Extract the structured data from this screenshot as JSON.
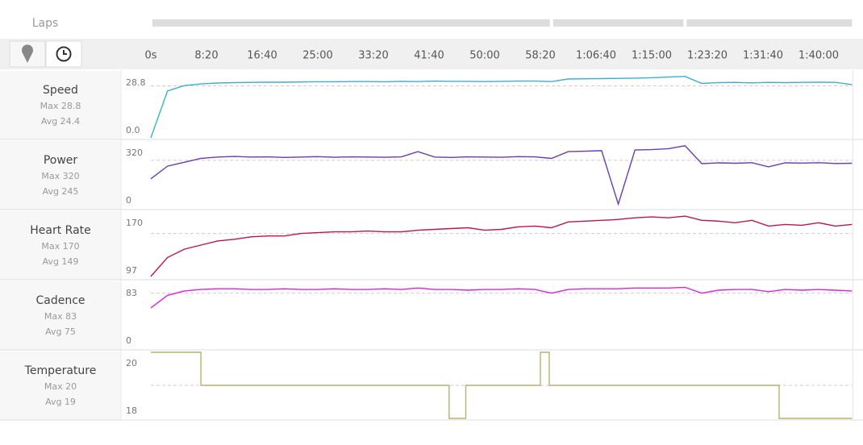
{
  "laps": {
    "label": "Laps",
    "splits": [
      3600,
      4800
    ]
  },
  "x_axis": {
    "xlim": [
      0,
      6300
    ],
    "xticks": [
      {
        "value": 0,
        "label": "0s"
      },
      {
        "value": 500,
        "label": "8:20"
      },
      {
        "value": 1000,
        "label": "16:40"
      },
      {
        "value": 1500,
        "label": "25:00"
      },
      {
        "value": 2000,
        "label": "33:20"
      },
      {
        "value": 2500,
        "label": "41:40"
      },
      {
        "value": 3000,
        "label": "50:00"
      },
      {
        "value": 3500,
        "label": "58:20"
      },
      {
        "value": 4000,
        "label": "1:06:40"
      },
      {
        "value": 4500,
        "label": "1:15:00"
      },
      {
        "value": 5000,
        "label": "1:23:20"
      },
      {
        "value": 5500,
        "label": "1:31:40"
      },
      {
        "value": 6000,
        "label": "1:40:00"
      }
    ]
  },
  "chart_data": [
    {
      "type": "line",
      "title": "Speed",
      "color": "#3ab0d0",
      "stats": {
        "max": {
          "value": 28.8,
          "label": "Max 28.8"
        },
        "avg": {
          "value": 24.4,
          "label": "Avg 24.4"
        }
      },
      "ylim": [
        0,
        31
      ],
      "yticks": [
        {
          "value": 0,
          "label": "0.0"
        },
        28.8
      ],
      "x": [
        0,
        150,
        300,
        450,
        600,
        750,
        900,
        1050,
        1200,
        1350,
        1500,
        1650,
        1800,
        1950,
        2100,
        2250,
        2400,
        2550,
        2700,
        2850,
        3000,
        3150,
        3300,
        3450,
        3600,
        3750,
        3900,
        4050,
        4200,
        4350,
        4500,
        4650,
        4800,
        4950,
        5100,
        5250,
        5400,
        5550,
        5700,
        5850,
        6000,
        6150,
        6300
      ],
      "values": [
        0,
        22,
        24.5,
        25.3,
        25.7,
        25.9,
        26,
        26.1,
        26.1,
        26.2,
        26.3,
        26.3,
        26.4,
        26.4,
        26.3,
        26.5,
        26.4,
        26.6,
        26.5,
        26.5,
        26.4,
        26.5,
        26.6,
        26.6,
        26.4,
        27.6,
        27.7,
        27.8,
        27.9,
        28,
        28.2,
        28.5,
        28.8,
        25.5,
        25.9,
        26,
        25.8,
        26,
        25.9,
        26,
        26.1,
        26,
        25
      ]
    },
    {
      "type": "line",
      "title": "Power",
      "color": "#6a3ab8",
      "stats": {
        "max": {
          "value": 320,
          "label": "Max 320"
        },
        "avg": {
          "value": 245,
          "label": "Avg 245"
        }
      },
      "ylim": [
        0,
        340
      ],
      "yticks": [
        0,
        320
      ],
      "x": [
        0,
        150,
        300,
        450,
        600,
        750,
        900,
        1050,
        1200,
        1350,
        1500,
        1650,
        1800,
        1950,
        2100,
        2250,
        2400,
        2550,
        2700,
        2850,
        3000,
        3150,
        3300,
        3450,
        3600,
        3750,
        3900,
        4050,
        4200,
        4350,
        4500,
        4650,
        4800,
        4950,
        5100,
        5250,
        5400,
        5550,
        5700,
        5850,
        6000,
        6150,
        6300
      ],
      "values": [
        150,
        215,
        235,
        255,
        262,
        265,
        262,
        263,
        260,
        262,
        264,
        261,
        263,
        262,
        261,
        263,
        290,
        262,
        260,
        263,
        262,
        261,
        264,
        263,
        255,
        290,
        292,
        295,
        20,
        298,
        300,
        305,
        320,
        228,
        232,
        230,
        233,
        212,
        232,
        231,
        233,
        229,
        230
      ]
    },
    {
      "type": "line",
      "title": "Heart Rate",
      "color": "#c0144a",
      "stats": {
        "max": {
          "value": 170,
          "label": "Max 170"
        },
        "avg": {
          "value": 149,
          "label": "Avg 149"
        }
      },
      "ylim": [
        95,
        175
      ],
      "yticks": [
        97,
        170
      ],
      "x": [
        0,
        150,
        300,
        450,
        600,
        750,
        900,
        1050,
        1200,
        1350,
        1500,
        1650,
        1800,
        1950,
        2100,
        2250,
        2400,
        2550,
        2700,
        2850,
        3000,
        3150,
        3300,
        3450,
        3600,
        3750,
        3900,
        4050,
        4200,
        4350,
        4500,
        4650,
        4800,
        4950,
        5100,
        5250,
        5400,
        5550,
        5700,
        5850,
        6000,
        6150,
        6300
      ],
      "values": [
        97,
        120,
        130,
        135,
        140,
        142,
        145,
        146,
        146,
        149,
        150,
        151,
        151,
        152,
        151,
        151,
        153,
        154,
        155,
        156,
        153,
        154,
        157,
        158,
        156,
        163,
        164,
        165,
        166,
        168,
        169,
        168,
        170,
        165,
        164,
        162,
        165,
        158,
        160,
        159,
        162,
        158,
        160
      ]
    },
    {
      "type": "line",
      "title": "Cadence",
      "color": "#e020e0",
      "stats": {
        "max": {
          "value": 83,
          "label": "Max 83"
        },
        "avg": {
          "value": 75,
          "label": "Avg 75"
        }
      },
      "ylim": [
        0,
        90
      ],
      "yticks": [
        0,
        83
      ],
      "x": [
        0,
        150,
        300,
        450,
        600,
        750,
        900,
        1050,
        1200,
        1350,
        1500,
        1650,
        1800,
        1950,
        2100,
        2250,
        2400,
        2550,
        2700,
        2850,
        3000,
        3150,
        3300,
        3450,
        3600,
        3750,
        3900,
        4050,
        4200,
        4350,
        4500,
        4650,
        4800,
        4950,
        5100,
        5250,
        5400,
        5550,
        5700,
        5850,
        6000,
        6150,
        6300
      ],
      "values": [
        55,
        72,
        78,
        80,
        81,
        81,
        80,
        80,
        81,
        80,
        80,
        81,
        80,
        80,
        81,
        80,
        82,
        80,
        80,
        79,
        80,
        80,
        81,
        80,
        75,
        80,
        81,
        81,
        81,
        82,
        82,
        82,
        83,
        75,
        79,
        80,
        80,
        77,
        80,
        79,
        80,
        79,
        78
      ]
    },
    {
      "type": "line",
      "title": "Temperature",
      "color": "#b8b070",
      "stats": {
        "max": {
          "value": 20,
          "label": "Max 20"
        },
        "avg": {
          "value": 19,
          "label": "Avg 19"
        }
      },
      "ylim": [
        18,
        20
      ],
      "yticks": [
        18,
        20
      ],
      "x": [
        0,
        450,
        450,
        2680,
        2680,
        2830,
        2830,
        3500,
        3500,
        3580,
        3580,
        5645,
        5645,
        6300
      ],
      "values": [
        20,
        20,
        19,
        19,
        18,
        18,
        19,
        19,
        20,
        20,
        19,
        19,
        18,
        18
      ]
    }
  ]
}
